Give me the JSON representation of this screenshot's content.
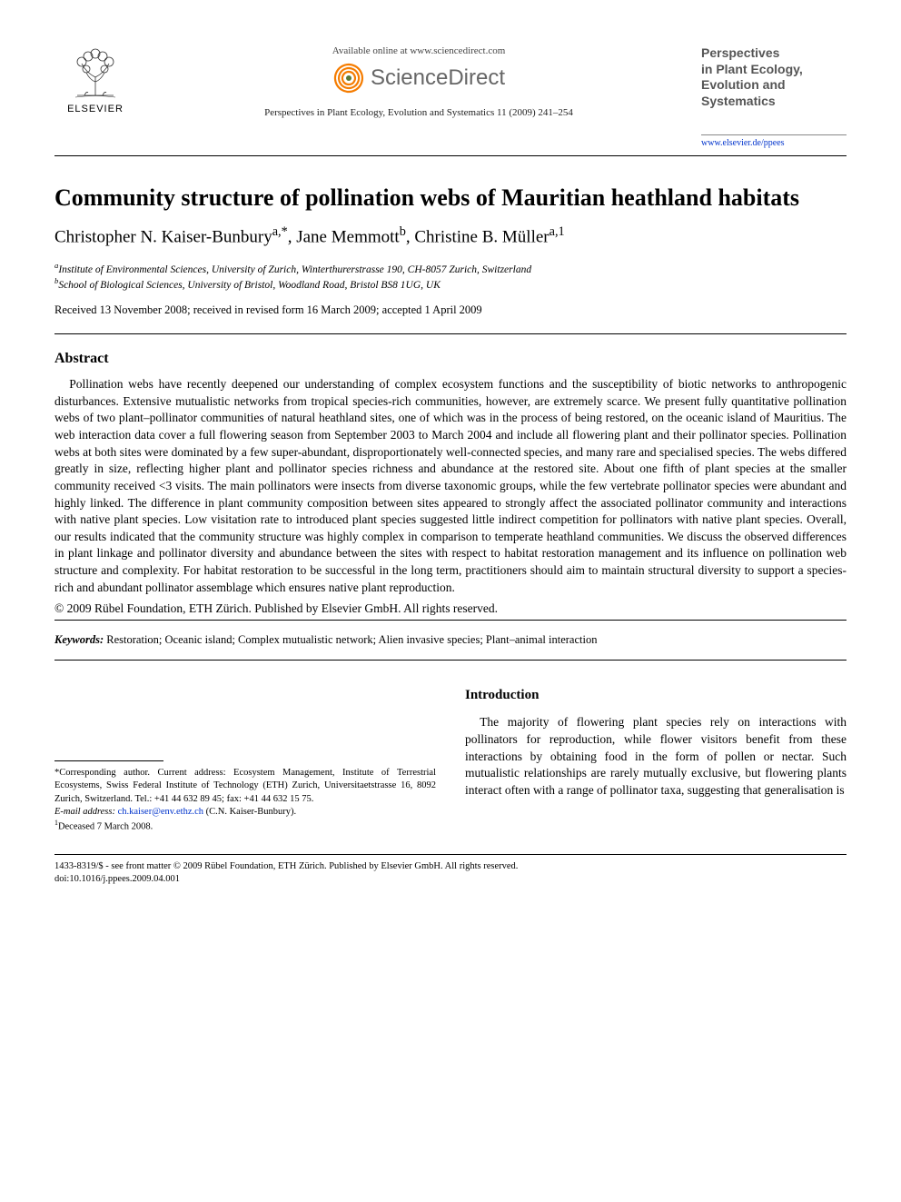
{
  "header": {
    "publisher_label": "ELSEVIER",
    "available_text": "Available online at www.sciencedirect.com",
    "sd_brand": "ScienceDirect",
    "journal_ref": "Perspectives in Plant Ecology, Evolution and Systematics 11 (2009) 241–254",
    "journal_name_lines": [
      "Perspectives",
      "in Plant Ecology,",
      "Evolution and",
      "Systematics"
    ],
    "journal_url": "www.elsevier.de/ppees"
  },
  "title": "Community structure of pollination webs of Mauritian heathland habitats",
  "authors_html": "Christopher N. Kaiser-Bunbury<sup>a,*</sup>, Jane Memmott<sup>b</sup>, Christine B. Müller<sup>a,1</sup>",
  "affiliations": [
    "aInstitute of Environmental Sciences, University of Zurich, Winterthurerstrasse 190, CH-8057 Zurich, Switzerland",
    "bSchool of Biological Sciences, University of Bristol, Woodland Road, Bristol BS8 1UG, UK"
  ],
  "dates": "Received 13 November 2008; received in revised form 16 March 2009; accepted 1 April 2009",
  "abstract": {
    "heading": "Abstract",
    "body": "Pollination webs have recently deepened our understanding of complex ecosystem functions and the susceptibility of biotic networks to anthropogenic disturbances. Extensive mutualistic networks from tropical species-rich communities, however, are extremely scarce. We present fully quantitative pollination webs of two plant–pollinator communities of natural heathland sites, one of which was in the process of being restored, on the oceanic island of Mauritius. The web interaction data cover a full flowering season from September 2003 to March 2004 and include all flowering plant and their pollinator species. Pollination webs at both sites were dominated by a few super-abundant, disproportionately well-connected species, and many rare and specialised species. The webs differed greatly in size, reflecting higher plant and pollinator species richness and abundance at the restored site. About one fifth of plant species at the smaller community received <3 visits. The main pollinators were insects from diverse taxonomic groups, while the few vertebrate pollinator species were abundant and highly linked. The difference in plant community composition between sites appeared to strongly affect the associated pollinator community and interactions with native plant species. Low visitation rate to introduced plant species suggested little indirect competition for pollinators with native plant species. Overall, our results indicated that the community structure was highly complex in comparison to temperate heathland communities. We discuss the observed differences in plant linkage and pollinator diversity and abundance between the sites with respect to habitat restoration management and its influence on pollination web structure and complexity. For habitat restoration to be successful in the long term, practitioners should aim to maintain structural diversity to support a species-rich and abundant pollinator assemblage which ensures native plant reproduction.",
    "copyright": "© 2009 Rübel Foundation, ETH Zürich. Published by Elsevier GmbH. All rights reserved."
  },
  "keywords": {
    "label": "Keywords:",
    "text": " Restoration; Oceanic island; Complex mutualistic network; Alien invasive species; Plant–animal interaction"
  },
  "footnote": {
    "corresponding": "*Corresponding author. Current address: Ecosystem Management, Institute of Terrestrial Ecosystems, Swiss Federal Institute of Technology (ETH) Zurich, Universitaetstrasse 16, 8092 Zurich, Switzerland. Tel.: +41 44 632 89 45; fax: +41 44 632 15 75.",
    "email_label": "E-mail address:",
    "email": "ch.kaiser@env.ethz.ch",
    "email_person": " (C.N. Kaiser-Bunbury).",
    "deceased": "1Deceased 7 March 2008."
  },
  "intro": {
    "heading": "Introduction",
    "body": "The majority of flowering plant species rely on interactions with pollinators for reproduction, while flower visitors benefit from these interactions by obtaining food in the form of pollen or nectar. Such mutualistic relationships are rarely mutually exclusive, but flowering plants interact often with a range of pollinator taxa, suggesting that generalisation is"
  },
  "footer": {
    "line1": "1433-8319/$ - see front matter © 2009 Rübel Foundation, ETH Zürich. Published by Elsevier GmbH. All rights reserved.",
    "line2": "doi:10.1016/j.ppees.2009.04.001"
  },
  "colors": {
    "text": "#000000",
    "bg": "#ffffff",
    "link": "#0033cc",
    "grey": "#666666",
    "sd_orange": "#f57c00"
  }
}
